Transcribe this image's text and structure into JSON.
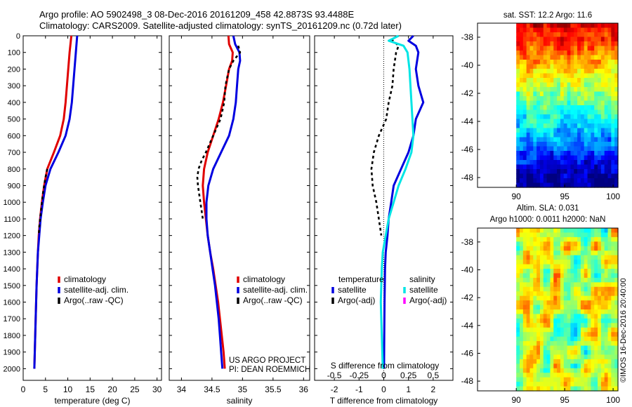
{
  "header": {
    "line1": "Argo profile: AO 5902498_3 08-Dec-2016 20161209_458 42.8873S 93.4488E",
    "line2": "Climatology: CARS2009. Satellite-adjusted climatology: synTS_20161209.nc (0.72d later)"
  },
  "colors": {
    "red": "#e00000",
    "blue": "#0000e0",
    "black": "#000000",
    "cyan": "#00e5e5",
    "magenta": "#ff00ff"
  },
  "chart_data": [
    {
      "type": "line",
      "panel": "temperature",
      "xlabel": "temperature (deg C)",
      "xlim": [
        0,
        31
      ],
      "xticks": [
        0,
        5,
        10,
        15,
        20,
        25,
        30
      ],
      "ylim": [
        2070,
        0
      ],
      "yticks": [
        0,
        100,
        200,
        300,
        400,
        500,
        600,
        700,
        800,
        900,
        1000,
        1100,
        1200,
        1300,
        1400,
        1500,
        1600,
        1700,
        1800,
        1900,
        2000
      ],
      "legend": [
        "climatology",
        "satellite-adj. clim.",
        "Argo(..raw -QC)"
      ],
      "legend_position": "center",
      "series": [
        {
          "name": "climatology",
          "color": "red",
          "depth": [
            0,
            100,
            200,
            300,
            400,
            500,
            600,
            700,
            800,
            900,
            1000,
            1100,
            1200,
            1300,
            1500,
            1700,
            2000
          ],
          "values": [
            10.8,
            10.4,
            10.1,
            9.8,
            9.5,
            9.1,
            8.3,
            6.9,
            5.4,
            4.7,
            4.2,
            3.8,
            3.5,
            3.3,
            3.0,
            2.8,
            2.5
          ]
        },
        {
          "name": "satellite-adj. clim.",
          "color": "blue",
          "depth": [
            0,
            100,
            200,
            300,
            400,
            500,
            600,
            700,
            800,
            900,
            1000,
            1100,
            1200,
            1300,
            1500,
            1700,
            2000
          ],
          "values": [
            12.1,
            11.8,
            11.5,
            11.2,
            10.9,
            10.4,
            9.5,
            7.9,
            6.1,
            5.0,
            4.4,
            3.9,
            3.6,
            3.3,
            3.0,
            2.8,
            2.5
          ]
        },
        {
          "name": "Argo(..raw -QC)",
          "color": "black",
          "dashed": true,
          "depth": [
            800,
            850,
            900,
            950,
            1000,
            1050,
            1100,
            1150,
            1200
          ],
          "values": [
            5.4,
            5.0,
            4.7,
            4.4,
            4.2,
            4.0,
            3.8,
            3.6,
            3.5
          ]
        }
      ]
    },
    {
      "type": "line",
      "panel": "salinity",
      "xlabel": "salinity",
      "xlim": [
        33.8,
        36.1
      ],
      "xticks": [
        34,
        34.5,
        35,
        35.5,
        36
      ],
      "ylim": [
        2070,
        0
      ],
      "legend": [
        "climatology",
        "satellite-adj. clim.",
        "Argo(..raw -QC)"
      ],
      "legend_position": "center-right",
      "annotation": [
        "US ARGO PROJECT",
        "PI: DEAN ROEMMICH"
      ],
      "series": [
        {
          "name": "climatology",
          "color": "red",
          "depth": [
            0,
            50,
            100,
            150,
            200,
            300,
            400,
            500,
            600,
            700,
            800,
            900,
            1000,
            1100,
            1200,
            1300,
            1400,
            1500,
            1600,
            1700,
            1800,
            1900,
            2000
          ],
          "values": [
            34.77,
            34.78,
            34.84,
            34.83,
            34.78,
            34.73,
            34.68,
            34.61,
            34.52,
            34.43,
            34.37,
            34.35,
            34.37,
            34.4,
            34.43,
            34.47,
            34.52,
            34.56,
            34.6,
            34.63,
            34.66,
            34.69,
            34.71
          ]
        },
        {
          "name": "satellite-adj. clim.",
          "color": "blue",
          "depth": [
            0,
            50,
            100,
            150,
            200,
            300,
            400,
            500,
            600,
            700,
            800,
            900,
            1000,
            1100,
            1200,
            1300,
            1400,
            1500,
            1600,
            1700,
            1800,
            1900,
            2000
          ],
          "values": [
            34.85,
            34.88,
            34.95,
            34.96,
            34.93,
            34.91,
            34.89,
            34.85,
            34.78,
            34.65,
            34.52,
            34.44,
            34.41,
            34.41,
            34.43,
            34.47,
            34.51,
            34.55,
            34.58,
            34.61,
            34.63,
            34.65,
            34.67
          ]
        },
        {
          "name": "Argo(..raw -QC)",
          "color": "black",
          "dashed": true,
          "depth": [
            60,
            100,
            150,
            200,
            300,
            400,
            500,
            600,
            700,
            750,
            800,
            850,
            900,
            950,
            1000,
            1050,
            1100
          ],
          "values": [
            34.93,
            34.96,
            34.85,
            34.78,
            34.72,
            34.7,
            34.64,
            34.52,
            34.4,
            34.33,
            34.28,
            34.26,
            34.27,
            34.29,
            34.31,
            34.33,
            34.35
          ]
        }
      ]
    },
    {
      "type": "line",
      "panel": "difference",
      "xlabel": "T difference from climatology",
      "xlabel2": "S difference from climatology",
      "xlim": [
        -2.8,
        2.8
      ],
      "xticks": [
        -2,
        -1,
        0,
        1,
        2
      ],
      "xticks2": [
        -0.5,
        -0.25,
        0,
        0.25,
        0.5
      ],
      "xticks2_labels": [
        "-0.5",
        "-0.25",
        "0",
        "0.25",
        "0.5"
      ],
      "ylim": [
        2070,
        0
      ],
      "legend_title_left": "temperature",
      "legend_title_right": "salinity",
      "legend": [
        "satellite",
        "Argo(-adj)",
        "satellite",
        "Argo(-adj)"
      ],
      "legend_position": "center",
      "series": [
        {
          "name": "satellite",
          "group": "temperature",
          "color": "blue",
          "depth": [
            0,
            30,
            60,
            100,
            200,
            300,
            400,
            500,
            600,
            700,
            800,
            900,
            1000,
            1100,
            1200,
            1300,
            1400,
            1600,
            1800,
            2000
          ],
          "values": [
            1.2,
            1.0,
            1.3,
            1.4,
            1.3,
            1.4,
            1.6,
            1.3,
            1.2,
            1.0,
            0.7,
            0.4,
            0.3,
            0.2,
            0.15,
            0.08,
            0.05,
            0.03,
            0.02,
            0.01
          ]
        },
        {
          "name": "Argo(-adj)",
          "group": "temperature",
          "color": "black",
          "dashed": true,
          "depth": [
            20,
            60,
            100,
            200,
            300,
            400,
            500,
            600,
            700,
            800,
            900,
            1000,
            1100,
            1200
          ],
          "values": [
            0.3,
            0.6,
            0.5,
            0.4,
            0.35,
            0.2,
            0.1,
            -0.2,
            -0.4,
            -0.5,
            -0.45,
            -0.3,
            -0.2,
            -0.1
          ]
        },
        {
          "name": "satellite",
          "group": "salinity",
          "color": "cyan",
          "depth": [
            0,
            30,
            60,
            100,
            200,
            300,
            400,
            500,
            600,
            700,
            800,
            900,
            1000,
            1100,
            1200,
            1300,
            1400,
            1600,
            1800,
            2000
          ],
          "values": [
            0.15,
            0.05,
            0.2,
            0.24,
            0.26,
            0.27,
            0.28,
            0.29,
            0.3,
            0.28,
            0.22,
            0.15,
            0.1,
            0.05,
            0.02,
            -0.01,
            -0.02,
            -0.03,
            -0.02,
            -0.01
          ]
        },
        {
          "name": "Argo(-adj)",
          "group": "salinity",
          "color": "magenta",
          "depth": [],
          "values": []
        }
      ]
    },
    {
      "type": "heatmap",
      "panel": "SST map",
      "title": "sat. SST: 12.2  Argo: 11.6",
      "xlim": [
        86,
        100.5
      ],
      "ylim": [
        -48.7,
        -37
      ],
      "xticks": [
        90,
        95,
        100
      ],
      "yticks": [
        -38,
        -40,
        -42,
        -44,
        -46,
        -48
      ],
      "yticks_labels": [
        "-38",
        "-40",
        "-42",
        "-44",
        "-46",
        "-48"
      ],
      "data_xrange": [
        90,
        100.5
      ],
      "colormap": "jet"
    },
    {
      "type": "heatmap",
      "panel": "SLA map",
      "title": "Altim. SLA: 0.031",
      "subtitle": "Argo h1000: 0.0011 h2000: NaN",
      "xlim": [
        86,
        100.5
      ],
      "ylim": [
        -48.7,
        -37
      ],
      "xticks": [
        90,
        95,
        100
      ],
      "yticks": [
        -38,
        -40,
        -42,
        -44,
        -46,
        -48
      ],
      "yticks_labels": [
        "-38",
        "-40",
        "-42",
        "-44",
        "-46",
        "-48"
      ],
      "data_xrange": [
        90,
        100.5
      ],
      "colormap": "jet"
    }
  ],
  "credit": "©IMOS 16-Dec-2016 20:40:00"
}
